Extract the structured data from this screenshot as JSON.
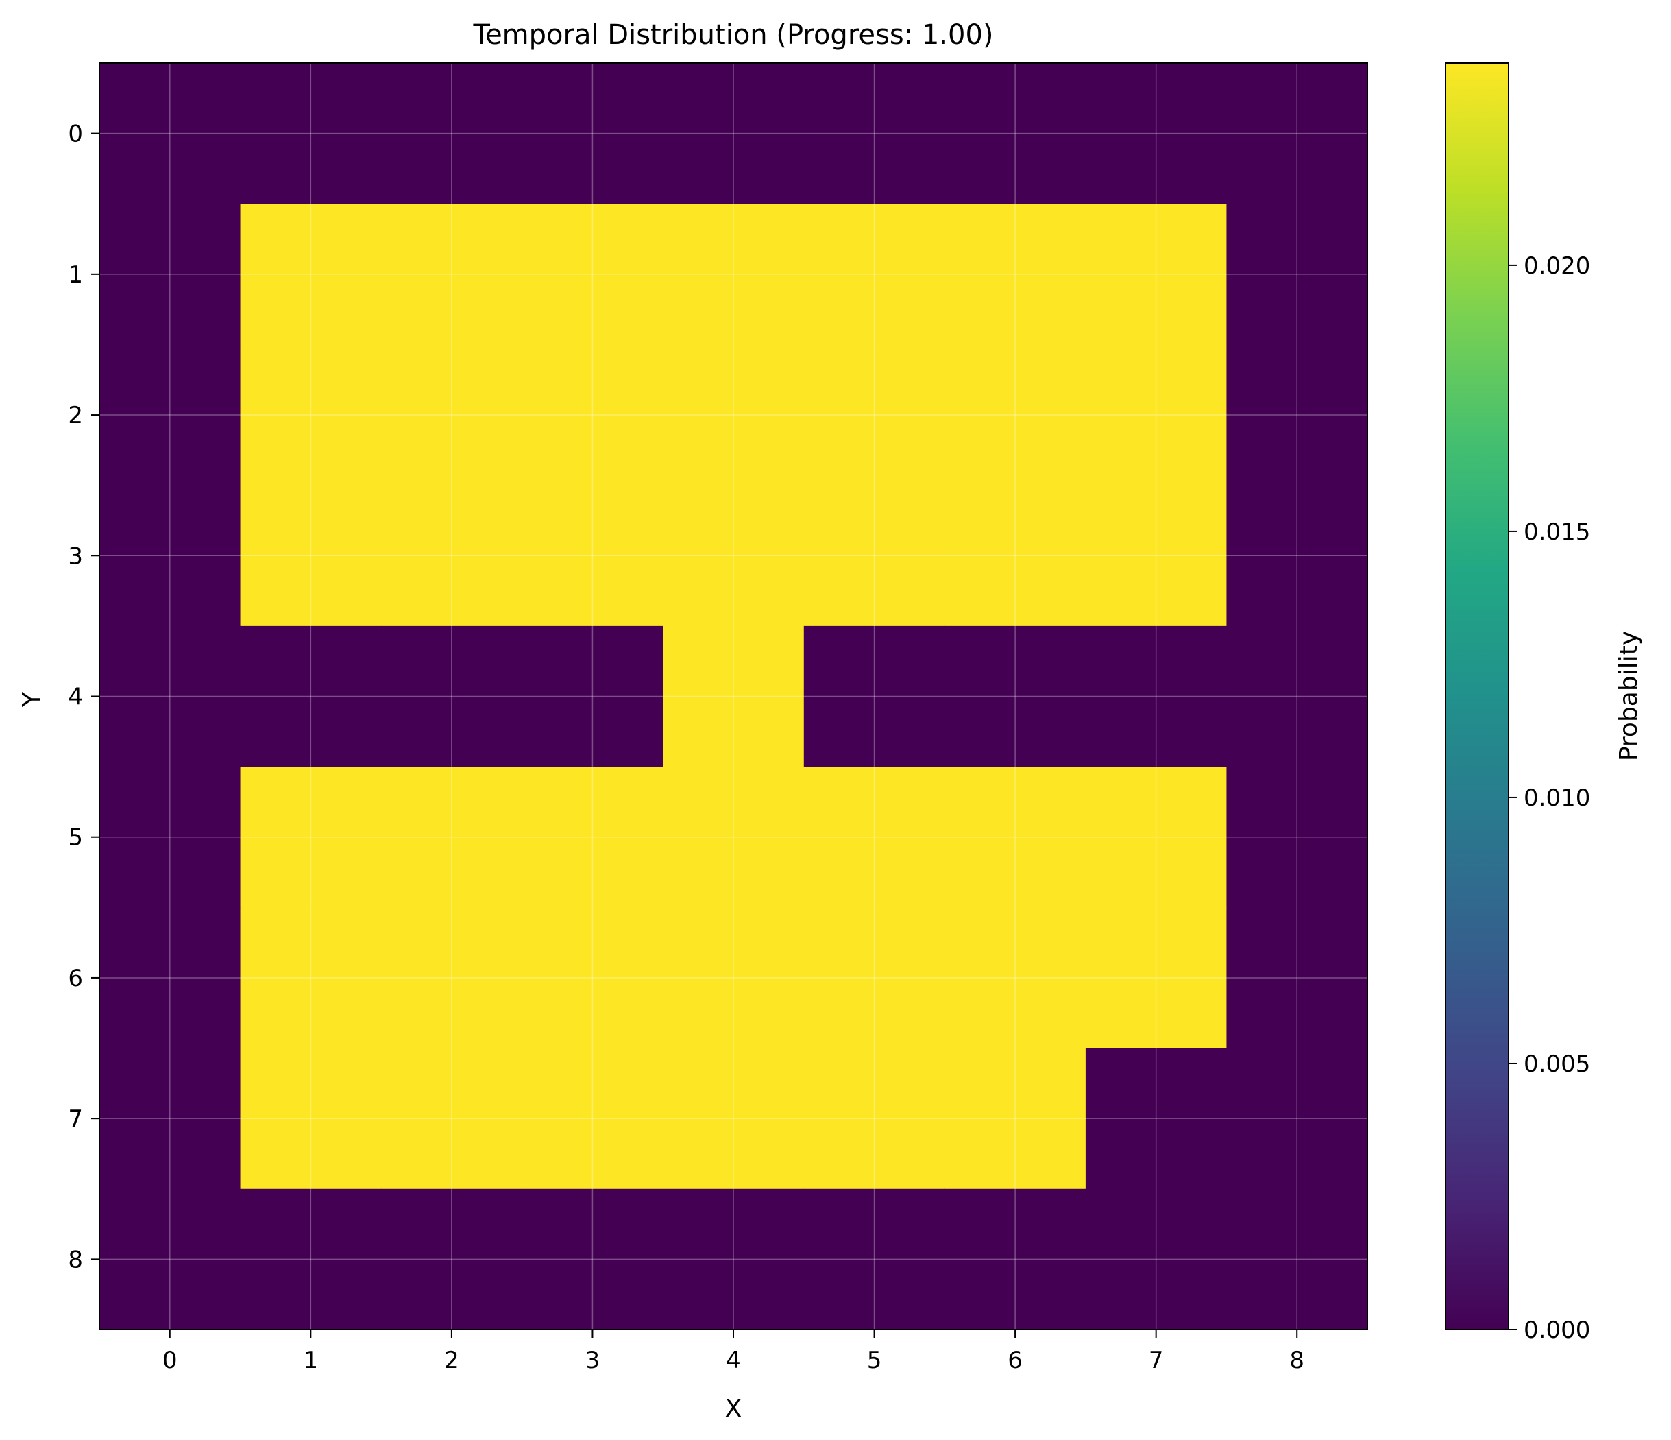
{
  "chart_data": {
    "type": "heatmap",
    "title": "Temporal Distribution (Progress: 1.00)",
    "xlabel": "X",
    "ylabel": "Y",
    "x_ticks": [
      "0",
      "1",
      "2",
      "3",
      "4",
      "5",
      "6",
      "7",
      "8"
    ],
    "y_ticks": [
      "0",
      "1",
      "2",
      "3",
      "4",
      "5",
      "6",
      "7",
      "8"
    ],
    "xlim": [
      -0.5,
      8.5
    ],
    "ylim": [
      8.5,
      -0.5
    ],
    "grid": true,
    "colormap": "viridis",
    "color_low": "#440154",
    "color_high": "#fde725",
    "colorbar": {
      "label": "Probability",
      "range": [
        0.0,
        0.0238
      ],
      "ticks": [
        "0.000",
        "0.005",
        "0.010",
        "0.015",
        "0.020"
      ],
      "tick_values": [
        0.0,
        0.005,
        0.01,
        0.015,
        0.02
      ]
    },
    "values": [
      [
        0,
        0,
        0,
        0,
        0,
        0,
        0,
        0,
        0
      ],
      [
        0,
        0.0238,
        0.0238,
        0.0238,
        0.0238,
        0.0238,
        0.0238,
        0.0238,
        0
      ],
      [
        0,
        0.0238,
        0.0238,
        0.0238,
        0.0238,
        0.0238,
        0.0238,
        0.0238,
        0
      ],
      [
        0,
        0.0238,
        0.0238,
        0.0238,
        0.0238,
        0.0238,
        0.0238,
        0.0238,
        0
      ],
      [
        0,
        0,
        0,
        0,
        0.0238,
        0,
        0,
        0,
        0
      ],
      [
        0,
        0.0238,
        0.0238,
        0.0238,
        0.0238,
        0.0238,
        0.0238,
        0.0238,
        0
      ],
      [
        0,
        0.0238,
        0.0238,
        0.0238,
        0.0238,
        0.0238,
        0.0238,
        0.0238,
        0
      ],
      [
        0,
        0.0238,
        0.0238,
        0.0238,
        0.0238,
        0.0238,
        0.0238,
        0,
        0
      ],
      [
        0,
        0,
        0,
        0,
        0,
        0,
        0,
        0,
        0
      ]
    ]
  }
}
